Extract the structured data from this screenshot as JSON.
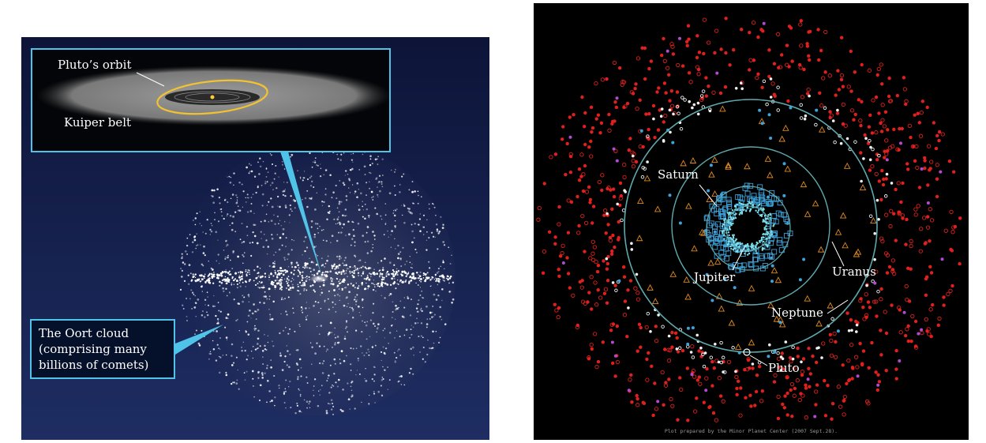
{
  "left": {
    "inset": {
      "orbit_label": "Pluto’s orbit",
      "belt_label": "Kuiper belt"
    },
    "oort_label": [
      "The Oort cloud",
      "(comprising many",
      "billions of comets)"
    ]
  },
  "right": {
    "planets": {
      "saturn": "Saturn",
      "jupiter": "Jupiter",
      "uranus": "Uranus",
      "neptune": "Neptune",
      "pluto": "Pluto"
    },
    "footnote": "Plot prepared by the Minor Planet Center (2007 Sept.28)."
  },
  "colors": {
    "callout": "#4fc3e8",
    "orbit_ring": "#5fa9ad",
    "pluto_orbit": "#f2c230",
    "kbo_red": "#e0201c",
    "centaur_orange": "#e08a1e",
    "trojan_blue": "#3fa2d9",
    "scattered_white": "#f0f0f0",
    "magenta": "#b34ad0"
  }
}
